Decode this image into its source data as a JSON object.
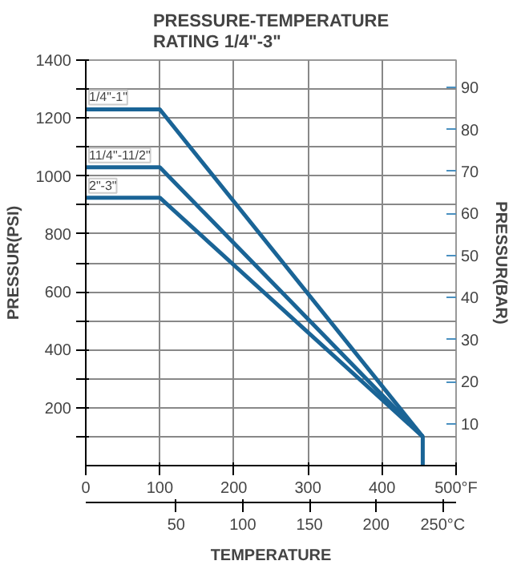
{
  "chart_data": {
    "type": "line",
    "title": "PRESSURE-TEMPERATURE\nRATING 1/4\"-3\"",
    "xlabel": "TEMPERATURE",
    "ylabel": "PRESSUR(PSI)",
    "y2label": "PRESSUR(BAR)",
    "series": [
      {
        "name": "1/4\"-1\"",
        "color": "#1a6496",
        "x": [
          0,
          100,
          455,
          455
        ],
        "values": [
          1230,
          1230,
          100,
          0
        ]
      },
      {
        "name": "11/4\"-11/2\"",
        "color": "#1a6496",
        "x": [
          0,
          100,
          455
        ],
        "values": [
          1030,
          1030,
          100
        ]
      },
      {
        "name": "2\"-3\"",
        "color": "#1a6496",
        "x": [
          0,
          100,
          455
        ],
        "values": [
          925,
          925,
          100
        ]
      }
    ],
    "xlim": [
      0,
      500
    ],
    "xticks": [
      0,
      100,
      200,
      300,
      400,
      {
        "value": 500,
        "label": "500°F"
      }
    ],
    "x2lim": [
      -17.8,
      260
    ],
    "x2ticks": [
      50,
      100,
      150,
      200,
      {
        "value": 250,
        "label": "250°C"
      }
    ],
    "ylim": [
      0,
      1400
    ],
    "yticks": [
      {
        "value": 100,
        "label": null
      },
      200,
      {
        "value": 300,
        "label": null
      },
      400,
      {
        "value": 500,
        "label": null
      },
      600,
      {
        "value": 700,
        "label": null
      },
      800,
      {
        "value": 900,
        "label": null
      },
      1000,
      {
        "value": 1100,
        "label": null
      },
      1200,
      {
        "value": 1300,
        "label": null
      },
      1400
    ],
    "y2lim": [
      0,
      96.5
    ],
    "y2ticks": [
      10,
      20,
      30,
      40,
      50,
      60,
      70,
      80,
      90
    ],
    "grid": true,
    "marker": "none",
    "line_style": "solid"
  }
}
